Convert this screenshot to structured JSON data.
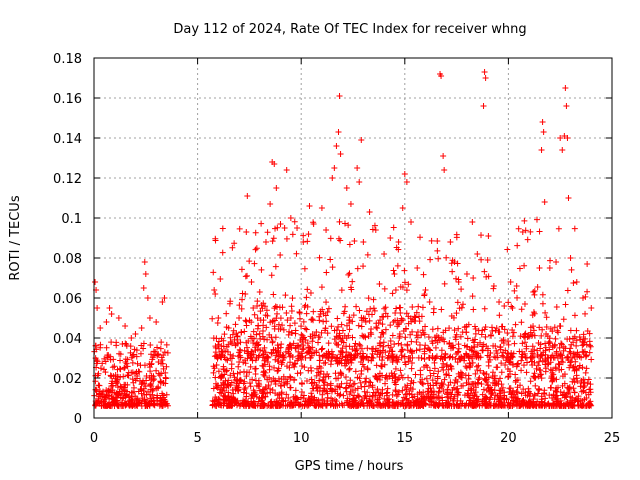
{
  "chart_data": {
    "type": "scatter",
    "title": "Day 112 of 2024, Rate Of TEC Index for receiver whng",
    "xlabel": "GPS time / hours",
    "ylabel": "ROTI / TECUs",
    "xlim": [
      0,
      25
    ],
    "ylim": [
      0,
      0.18
    ],
    "x_ticks": [
      0,
      5,
      10,
      15,
      20,
      25
    ],
    "y_ticks": [
      0,
      0.02,
      0.04,
      0.06,
      0.08,
      0.1,
      0.12,
      0.14,
      0.16,
      0.18
    ],
    "x_tick_labels": [
      "0",
      "5",
      "10",
      "15",
      "20",
      "25"
    ],
    "y_tick_labels": [
      "0",
      "0.02",
      "0.04",
      "0.06",
      "0.08",
      "0.1",
      "0.12",
      "0.14",
      "0.16",
      "0.18"
    ],
    "grid": true,
    "marker": "plus",
    "color": "#ff0000",
    "data_gap_hours": [
      3.6,
      5.7
    ],
    "series": [
      {
        "points": [
          [
            0.05,
            0.068
          ],
          [
            0.1,
            0.064
          ],
          [
            0.15,
            0.055
          ],
          [
            0.3,
            0.045
          ],
          [
            0.6,
            0.048
          ],
          [
            0.75,
            0.055
          ],
          [
            0.85,
            0.052
          ],
          [
            1.2,
            0.05
          ],
          [
            1.5,
            0.046
          ],
          [
            1.8,
            0.04
          ],
          [
            2.0,
            0.042
          ],
          [
            2.3,
            0.045
          ],
          [
            2.4,
            0.065
          ],
          [
            2.45,
            0.078
          ],
          [
            2.5,
            0.072
          ],
          [
            2.6,
            0.06
          ],
          [
            2.7,
            0.05
          ],
          [
            3.0,
            0.048
          ],
          [
            3.3,
            0.058
          ],
          [
            3.4,
            0.06
          ],
          [
            5.8,
            0.064
          ],
          [
            5.85,
            0.062
          ],
          [
            6.0,
            0.05
          ],
          [
            6.5,
            0.045
          ],
          [
            7.0,
            0.05
          ],
          [
            7.3,
            0.062
          ],
          [
            7.35,
            0.093
          ],
          [
            7.4,
            0.111
          ],
          [
            7.6,
            0.068
          ],
          [
            8.0,
            0.063
          ],
          [
            8.3,
            0.088
          ],
          [
            8.5,
            0.107
          ],
          [
            8.6,
            0.128
          ],
          [
            8.7,
            0.127
          ],
          [
            8.8,
            0.115
          ],
          [
            9.0,
            0.097
          ],
          [
            9.2,
            0.095
          ],
          [
            9.3,
            0.124
          ],
          [
            9.5,
            0.1
          ],
          [
            9.8,
            0.095
          ],
          [
            10.1,
            0.088
          ],
          [
            10.4,
            0.106
          ],
          [
            10.6,
            0.097
          ],
          [
            11.0,
            0.105
          ],
          [
            11.2,
            0.094
          ],
          [
            11.5,
            0.12
          ],
          [
            11.6,
            0.125
          ],
          [
            11.7,
            0.136
          ],
          [
            11.8,
            0.143
          ],
          [
            11.85,
            0.161
          ],
          [
            11.9,
            0.132
          ],
          [
            12.2,
            0.115
          ],
          [
            12.4,
            0.107
          ],
          [
            12.7,
            0.125
          ],
          [
            12.8,
            0.118
          ],
          [
            12.9,
            0.139
          ],
          [
            13.0,
            0.088
          ],
          [
            13.3,
            0.103
          ],
          [
            13.6,
            0.094
          ],
          [
            14.0,
            0.082
          ],
          [
            14.3,
            0.09
          ],
          [
            14.5,
            0.072
          ],
          [
            14.7,
            0.088
          ],
          [
            14.9,
            0.105
          ],
          [
            15.0,
            0.122
          ],
          [
            15.1,
            0.118
          ],
          [
            15.3,
            0.098
          ],
          [
            15.6,
            0.075
          ],
          [
            16.0,
            0.064
          ],
          [
            16.2,
            0.058
          ],
          [
            16.7,
            0.172
          ],
          [
            16.75,
            0.171
          ],
          [
            16.85,
            0.131
          ],
          [
            16.9,
            0.124
          ],
          [
            17.2,
            0.088
          ],
          [
            17.4,
            0.078
          ],
          [
            17.6,
            0.068
          ],
          [
            18.0,
            0.072
          ],
          [
            18.3,
            0.07
          ],
          [
            18.5,
            0.082
          ],
          [
            18.8,
            0.156
          ],
          [
            18.85,
            0.173
          ],
          [
            18.9,
            0.17
          ],
          [
            19.0,
            0.079
          ],
          [
            19.3,
            0.066
          ],
          [
            19.8,
            0.056
          ],
          [
            20.2,
            0.055
          ],
          [
            20.4,
            0.066
          ],
          [
            20.8,
            0.057
          ],
          [
            21.2,
            0.063
          ],
          [
            21.5,
            0.075
          ],
          [
            21.6,
            0.134
          ],
          [
            21.65,
            0.148
          ],
          [
            21.7,
            0.143
          ],
          [
            21.75,
            0.108
          ],
          [
            22.0,
            0.075
          ],
          [
            22.3,
            0.078
          ],
          [
            22.5,
            0.14
          ],
          [
            22.6,
            0.134
          ],
          [
            22.7,
            0.141
          ],
          [
            22.75,
            0.165
          ],
          [
            22.8,
            0.156
          ],
          [
            22.85,
            0.14
          ],
          [
            22.9,
            0.11
          ],
          [
            23.0,
            0.08
          ],
          [
            23.3,
            0.068
          ],
          [
            23.6,
            0.06
          ],
          [
            23.8,
            0.077
          ],
          [
            24.0,
            0.055
          ]
        ]
      }
    ]
  }
}
